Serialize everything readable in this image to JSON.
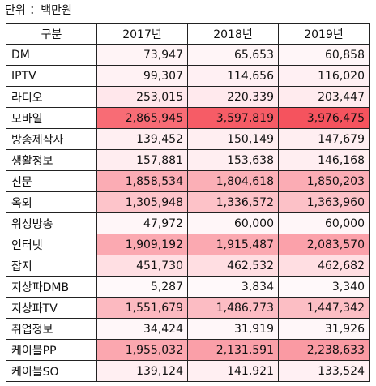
{
  "unit_label": "단위 ：백만원",
  "headers": [
    "구분",
    "2017년",
    "2018년",
    "2019년"
  ],
  "rows": [
    {
      "name": "DM",
      "v": [
        "73,947",
        "65,653",
        "60,858"
      ],
      "bg": [
        "#fff4f6",
        "#fff5f7",
        "#fff6f8"
      ]
    },
    {
      "name": "IPTV",
      "v": [
        "99,307",
        "114,656",
        "116,020"
      ],
      "bg": [
        "#fff2f4",
        "#fff0f3",
        "#fff0f3"
      ]
    },
    {
      "name": "라디오",
      "v": [
        "253,015",
        "220,339",
        "203,447"
      ],
      "bg": [
        "#ffe7eb",
        "#ffe9ed",
        "#ffebee"
      ]
    },
    {
      "name": "모바일",
      "v": [
        "2,865,945",
        "3,597,819",
        "3,976,475"
      ],
      "bg": [
        "#f86c75",
        "#f65c66",
        "#f5535e"
      ]
    },
    {
      "name": "방송제작사",
      "v": [
        "139,452",
        "150,149",
        "147,679"
      ],
      "bg": [
        "#ffeff2",
        "#ffeef1",
        "#ffeef1"
      ]
    },
    {
      "name": "생활정보",
      "v": [
        "157,881",
        "153,638",
        "146,168"
      ],
      "bg": [
        "#ffedf0",
        "#ffeef1",
        "#ffeef1"
      ]
    },
    {
      "name": "신문",
      "v": [
        "1,858,534",
        "1,804,618",
        "1,850,203"
      ],
      "bg": [
        "#fbacb4",
        "#fbafb6",
        "#fbacb4"
      ]
    },
    {
      "name": "옥외",
      "v": [
        "1,305,948",
        "1,336,572",
        "1,363,960"
      ],
      "bg": [
        "#fdc4ca",
        "#fdc2c8",
        "#fcc1c7"
      ]
    },
    {
      "name": "위성방송",
      "v": [
        "47,972",
        "60,000",
        "60,000"
      ],
      "bg": [
        "#fff6f8",
        "#fff6f8",
        "#fff6f8"
      ]
    },
    {
      "name": "인터넷",
      "v": [
        "1,909,192",
        "1,915,487",
        "2,083,570"
      ],
      "bg": [
        "#fba9b1",
        "#fba9b1",
        "#fba1aa"
      ]
    },
    {
      "name": "잡지",
      "v": [
        "451,730",
        "462,532",
        "462,682"
      ],
      "bg": [
        "#ffdfe3",
        "#ffdee2",
        "#ffdee2"
      ]
    },
    {
      "name": "지상파DMB",
      "v": [
        "5,287",
        "3,834",
        "3,340"
      ],
      "bg": [
        "#fff9fa",
        "#fff9fa",
        "#fff9fa"
      ]
    },
    {
      "name": "지상파TV",
      "v": [
        "1,551,679",
        "1,486,773",
        "1,447,342"
      ],
      "bg": [
        "#fcb9c0",
        "#fcbcc3",
        "#fcbec4"
      ]
    },
    {
      "name": "취업정보",
      "v": [
        "34,424",
        "31,919",
        "31,926"
      ],
      "bg": [
        "#fff7f9",
        "#fff7f9",
        "#fff7f9"
      ]
    },
    {
      "name": "케이블PP",
      "v": [
        "1,955,032",
        "2,131,591",
        "2,238,633"
      ],
      "bg": [
        "#fba7af",
        "#fa9fa8",
        "#fa9aa3"
      ]
    },
    {
      "name": "케이블SO",
      "v": [
        "139,124",
        "141,921",
        "133,524"
      ],
      "bg": [
        "#ffeff2",
        "#ffeff2",
        "#fff0f3"
      ]
    }
  ]
}
